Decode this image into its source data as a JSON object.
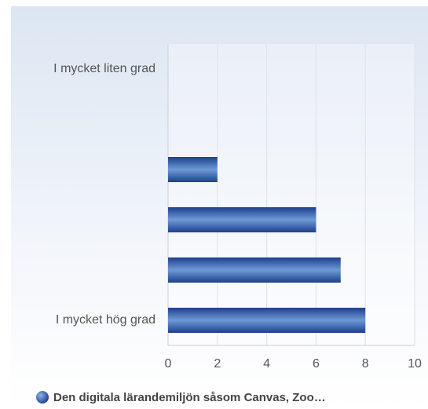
{
  "chart_data": {
    "type": "bar",
    "orientation": "horizontal",
    "categories": [
      "I mycket liten grad",
      null,
      null,
      null,
      null,
      "I mycket hög grad"
    ],
    "series": [
      {
        "name": "Den digitala lärandemiljön såsom Canvas, Zoo…",
        "color": "#2a55a8",
        "values": [
          0,
          0,
          2,
          6,
          7,
          8
        ]
      }
    ],
    "xlim": [
      0,
      10
    ],
    "xticks": [
      0,
      2,
      4,
      6,
      8,
      10
    ],
    "grid": true,
    "legend": "bottom"
  }
}
